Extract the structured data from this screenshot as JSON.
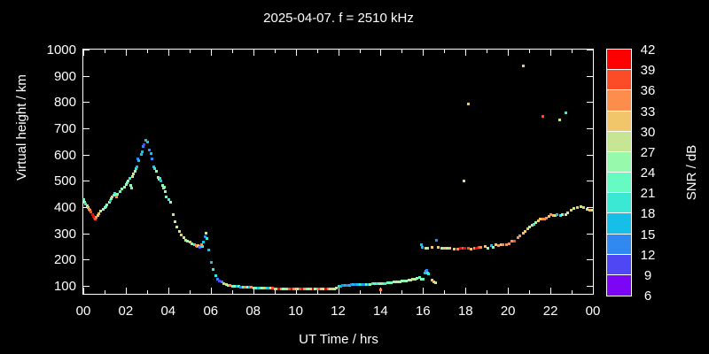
{
  "title": "2025-04-07. f = 2510 kHz",
  "axes": {
    "x_label": "UT Time / hrs",
    "y_label": "Virtual height / km",
    "x_tick_labels": [
      "00",
      "02",
      "04",
      "06",
      "08",
      "10",
      "12",
      "14",
      "16",
      "18",
      "20",
      "22",
      "00"
    ],
    "x_tick_hours": [
      0,
      2,
      4,
      6,
      8,
      10,
      12,
      14,
      16,
      18,
      20,
      22,
      24
    ],
    "y_tick_labels": [
      "1000",
      "900",
      "800",
      "700",
      "600",
      "500",
      "400",
      "300",
      "200",
      "100"
    ],
    "y_tick_values": [
      1000,
      900,
      800,
      700,
      600,
      500,
      400,
      300,
      200,
      100
    ]
  },
  "colorbar": {
    "label": "SNR / dB",
    "tick_labels": [
      "42",
      "39",
      "36",
      "33",
      "30",
      "27",
      "24",
      "21",
      "18",
      "15",
      "12",
      "9",
      "6"
    ],
    "tick_values": [
      42,
      39,
      36,
      33,
      30,
      27,
      24,
      21,
      18,
      15,
      12,
      9,
      6
    ],
    "colors_top_to_bottom": [
      "#ff0000",
      "#fb4b27",
      "#fc8d4c",
      "#f1c56a",
      "#c6e693",
      "#96f9ab",
      "#66fbc2",
      "#3ae8d3",
      "#15bfe8",
      "#2f89f1",
      "#4f46f4",
      "#7d05f5"
    ]
  },
  "chart_data": {
    "type": "scatter",
    "title": "2025-04-07. f = 2510 kHz",
    "xlabel": "UT Time / hrs",
    "ylabel": "Virtual height / km",
    "zlabel": "SNR / dB",
    "xlim": [
      0,
      24
    ],
    "ylim": [
      70,
      1000
    ],
    "snr_range_db": [
      6,
      42
    ],
    "snr_step_db": 3,
    "grid": false,
    "legend_position": "colorbar-right",
    "points_t_h_snr": [
      [
        0.0,
        430,
        22
      ],
      [
        0.05,
        420,
        25
      ],
      [
        0.1,
        415,
        19
      ],
      [
        0.15,
        408,
        25
      ],
      [
        0.2,
        400,
        31
      ],
      [
        0.25,
        395,
        34
      ],
      [
        0.3,
        390,
        34
      ],
      [
        0.35,
        382,
        37
      ],
      [
        0.4,
        375,
        40
      ],
      [
        0.45,
        368,
        40
      ],
      [
        0.5,
        360,
        40
      ],
      [
        0.55,
        355,
        37
      ],
      [
        0.6,
        362,
        34
      ],
      [
        0.65,
        370,
        31
      ],
      [
        0.7,
        378,
        31
      ],
      [
        0.8,
        388,
        28
      ],
      [
        0.9,
        395,
        25
      ],
      [
        1.0,
        400,
        25
      ],
      [
        1.05,
        405,
        22
      ],
      [
        1.1,
        412,
        25
      ],
      [
        1.2,
        420,
        25
      ],
      [
        1.25,
        428,
        16
      ],
      [
        1.3,
        435,
        25
      ],
      [
        1.35,
        442,
        31
      ],
      [
        1.4,
        448,
        22
      ],
      [
        1.45,
        455,
        19
      ],
      [
        1.5,
        448,
        25
      ],
      [
        1.55,
        440,
        34
      ],
      [
        1.6,
        452,
        25
      ],
      [
        1.7,
        462,
        22
      ],
      [
        1.8,
        470,
        25
      ],
      [
        1.9,
        478,
        25
      ],
      [
        2.0,
        488,
        25
      ],
      [
        2.05,
        495,
        22
      ],
      [
        2.1,
        503,
        25
      ],
      [
        2.15,
        510,
        19
      ],
      [
        2.2,
        483,
        25
      ],
      [
        2.25,
        473,
        22
      ],
      [
        2.3,
        518,
        28
      ],
      [
        2.35,
        527,
        28
      ],
      [
        2.4,
        540,
        25
      ],
      [
        2.45,
        550,
        19
      ],
      [
        2.5,
        554,
        16
      ],
      [
        2.55,
        587,
        13
      ],
      [
        2.6,
        580,
        16
      ],
      [
        2.7,
        604,
        16
      ],
      [
        2.75,
        614,
        16
      ],
      [
        2.8,
        634,
        13
      ],
      [
        2.85,
        641,
        10
      ],
      [
        2.9,
        658,
        16
      ],
      [
        3.0,
        650,
        16
      ],
      [
        3.1,
        620,
        13
      ],
      [
        3.15,
        605,
        16
      ],
      [
        3.2,
        587,
        13
      ],
      [
        3.3,
        554,
        16
      ],
      [
        3.35,
        550,
        19
      ],
      [
        3.4,
        540,
        25
      ],
      [
        3.5,
        514,
        28
      ],
      [
        3.55,
        507,
        25
      ],
      [
        3.6,
        510,
        19
      ],
      [
        3.65,
        503,
        16
      ],
      [
        3.7,
        483,
        25
      ],
      [
        3.75,
        473,
        22
      ],
      [
        3.8,
        477,
        25
      ],
      [
        3.85,
        460,
        25
      ],
      [
        3.9,
        440,
        22
      ],
      [
        4.0,
        430,
        19
      ],
      [
        4.1,
        420,
        25
      ],
      [
        4.2,
        372,
        28
      ],
      [
        4.3,
        346,
        28
      ],
      [
        4.4,
        326,
        28
      ],
      [
        4.5,
        309,
        28
      ],
      [
        4.6,
        296,
        31
      ],
      [
        4.7,
        285,
        28
      ],
      [
        4.8,
        277,
        28
      ],
      [
        4.9,
        272,
        25
      ],
      [
        5.0,
        268,
        31
      ],
      [
        5.1,
        262,
        25
      ],
      [
        5.2,
        258,
        19
      ],
      [
        5.3,
        255,
        34
      ],
      [
        5.35,
        252,
        16
      ],
      [
        5.4,
        255,
        31
      ],
      [
        5.45,
        250,
        10
      ],
      [
        5.5,
        253,
        16
      ],
      [
        5.55,
        258,
        34
      ],
      [
        5.6,
        252,
        19
      ],
      [
        5.65,
        270,
        16
      ],
      [
        5.7,
        290,
        13
      ],
      [
        5.75,
        303,
        28
      ],
      [
        5.8,
        282,
        19
      ],
      [
        5.9,
        240,
        16
      ],
      [
        6.0,
        190,
        16
      ],
      [
        6.1,
        165,
        19
      ],
      [
        6.2,
        140,
        19
      ],
      [
        6.3,
        128,
        13
      ],
      [
        6.4,
        122,
        10
      ],
      [
        6.5,
        118,
        13
      ],
      [
        6.6,
        112,
        31
      ],
      [
        6.7,
        108,
        28
      ],
      [
        6.8,
        105,
        25
      ],
      [
        6.9,
        103,
        34
      ],
      [
        7.0,
        102,
        22
      ],
      [
        7.1,
        100,
        25
      ],
      [
        7.2,
        100,
        16
      ],
      [
        7.3,
        99,
        22
      ],
      [
        7.4,
        98,
        13
      ],
      [
        7.5,
        98,
        22
      ],
      [
        7.6,
        97,
        34
      ],
      [
        7.7,
        97,
        25
      ],
      [
        7.8,
        96,
        16
      ],
      [
        7.9,
        96,
        34
      ],
      [
        8.0,
        95,
        25
      ],
      [
        8.1,
        95,
        22
      ],
      [
        8.2,
        95,
        16
      ],
      [
        8.3,
        94,
        19
      ],
      [
        8.4,
        94,
        25
      ],
      [
        8.5,
        94,
        31
      ],
      [
        8.6,
        93,
        19
      ],
      [
        8.7,
        93,
        16
      ],
      [
        8.8,
        93,
        28
      ],
      [
        8.9,
        93,
        37
      ],
      [
        9.0,
        92,
        28
      ],
      [
        9.1,
        92,
        31
      ],
      [
        9.2,
        92,
        40
      ],
      [
        9.3,
        92,
        34
      ],
      [
        9.4,
        92,
        25
      ],
      [
        9.5,
        92,
        22
      ],
      [
        9.6,
        92,
        31
      ],
      [
        9.7,
        91,
        37
      ],
      [
        9.8,
        91,
        40
      ],
      [
        9.9,
        91,
        34
      ],
      [
        10.0,
        91,
        31
      ],
      [
        10.1,
        91,
        25
      ],
      [
        10.2,
        91,
        37
      ],
      [
        10.3,
        91,
        40
      ],
      [
        10.4,
        91,
        34
      ],
      [
        10.5,
        91,
        22
      ],
      [
        10.6,
        91,
        28
      ],
      [
        10.7,
        91,
        31
      ],
      [
        10.8,
        91,
        40
      ],
      [
        10.9,
        91,
        25
      ],
      [
        11.0,
        91,
        34
      ],
      [
        11.1,
        91,
        37
      ],
      [
        11.2,
        91,
        31
      ],
      [
        11.3,
        91,
        28
      ],
      [
        11.4,
        91,
        40
      ],
      [
        11.5,
        91,
        34
      ],
      [
        11.6,
        92,
        28
      ],
      [
        11.7,
        92,
        31
      ],
      [
        11.8,
        92,
        25
      ],
      [
        11.9,
        93,
        28
      ],
      [
        12.0,
        100,
        19
      ],
      [
        12.1,
        102,
        16
      ],
      [
        12.2,
        103,
        13
      ],
      [
        12.3,
        104,
        16
      ],
      [
        12.4,
        105,
        13
      ],
      [
        12.5,
        105,
        16
      ],
      [
        12.6,
        106,
        13
      ],
      [
        12.7,
        106,
        16
      ],
      [
        12.8,
        106,
        13
      ],
      [
        12.9,
        107,
        16
      ],
      [
        13.0,
        107,
        19
      ],
      [
        13.1,
        107,
        16
      ],
      [
        13.2,
        107,
        13
      ],
      [
        13.3,
        108,
        22
      ],
      [
        13.4,
        108,
        16
      ],
      [
        13.5,
        108,
        25
      ],
      [
        13.6,
        109,
        19
      ],
      [
        13.7,
        109,
        22
      ],
      [
        13.8,
        110,
        19
      ],
      [
        13.9,
        110,
        22
      ],
      [
        14.0,
        110,
        25
      ],
      [
        14.0,
        88,
        34
      ],
      [
        14.1,
        111,
        22
      ],
      [
        14.2,
        112,
        19
      ],
      [
        14.3,
        113,
        22
      ],
      [
        14.4,
        114,
        25
      ],
      [
        14.5,
        115,
        22
      ],
      [
        14.6,
        116,
        25
      ],
      [
        14.7,
        117,
        28
      ],
      [
        14.8,
        118,
        25
      ],
      [
        14.9,
        119,
        28
      ],
      [
        15.0,
        120,
        25
      ],
      [
        15.1,
        121,
        22
      ],
      [
        15.2,
        122,
        25
      ],
      [
        15.3,
        123,
        28
      ],
      [
        15.4,
        124,
        25
      ],
      [
        15.5,
        126,
        28
      ],
      [
        15.6,
        128,
        25
      ],
      [
        15.7,
        130,
        25
      ],
      [
        15.8,
        133,
        22
      ],
      [
        15.9,
        128,
        25
      ],
      [
        16.0,
        126,
        22
      ],
      [
        16.05,
        150,
        16
      ],
      [
        16.1,
        157,
        16
      ],
      [
        16.15,
        160,
        13
      ],
      [
        16.2,
        152,
        19
      ],
      [
        16.25,
        147,
        19
      ],
      [
        16.4,
        124,
        31
      ],
      [
        16.5,
        118,
        31
      ],
      [
        16.55,
        115,
        28
      ],
      [
        15.88,
        258,
        16
      ],
      [
        15.95,
        250,
        16
      ],
      [
        16.1,
        244,
        25
      ],
      [
        16.2,
        247,
        28
      ],
      [
        16.4,
        250,
        31
      ],
      [
        16.6,
        277,
        13
      ],
      [
        16.7,
        248,
        31
      ],
      [
        16.85,
        244,
        25
      ],
      [
        17.0,
        244,
        31
      ],
      [
        17.1,
        247,
        25
      ],
      [
        17.25,
        244,
        31
      ],
      [
        17.45,
        241,
        31
      ],
      [
        17.6,
        243,
        34
      ],
      [
        17.75,
        247,
        40
      ],
      [
        17.85,
        245,
        37
      ],
      [
        17.95,
        247,
        40
      ],
      [
        18.1,
        244,
        37
      ],
      [
        18.25,
        243,
        31
      ],
      [
        18.4,
        244,
        34
      ],
      [
        18.5,
        247,
        40
      ],
      [
        18.6,
        248,
        37
      ],
      [
        18.7,
        250,
        34
      ],
      [
        18.9,
        253,
        31
      ],
      [
        19.05,
        245,
        25
      ],
      [
        19.2,
        256,
        16
      ],
      [
        19.3,
        250,
        25
      ],
      [
        19.4,
        259,
        31
      ],
      [
        19.55,
        257,
        34
      ],
      [
        19.65,
        258,
        31
      ],
      [
        19.75,
        260,
        34
      ],
      [
        19.9,
        258,
        34
      ],
      [
        20.05,
        263,
        34
      ],
      [
        20.15,
        271,
        34
      ],
      [
        20.3,
        274,
        37
      ],
      [
        20.45,
        286,
        34
      ],
      [
        20.55,
        292,
        34
      ],
      [
        20.7,
        302,
        31
      ],
      [
        20.8,
        310,
        31
      ],
      [
        20.9,
        318,
        31
      ],
      [
        21.0,
        326,
        25
      ],
      [
        21.1,
        332,
        28
      ],
      [
        21.2,
        338,
        19
      ],
      [
        21.3,
        342,
        25
      ],
      [
        21.4,
        351,
        31
      ],
      [
        21.5,
        355,
        31
      ],
      [
        21.6,
        357,
        34
      ],
      [
        21.7,
        358,
        34
      ],
      [
        21.8,
        361,
        34
      ],
      [
        21.9,
        368,
        31
      ],
      [
        22.0,
        372,
        34
      ],
      [
        22.1,
        371,
        31
      ],
      [
        22.2,
        370,
        28
      ],
      [
        22.3,
        372,
        16
      ],
      [
        22.45,
        370,
        19
      ],
      [
        22.55,
        372,
        25
      ],
      [
        22.7,
        375,
        28
      ],
      [
        22.8,
        381,
        28
      ],
      [
        22.95,
        390,
        31
      ],
      [
        23.1,
        396,
        28
      ],
      [
        23.25,
        402,
        31
      ],
      [
        23.4,
        403,
        28
      ],
      [
        23.55,
        400,
        31
      ],
      [
        23.7,
        394,
        28
      ],
      [
        23.85,
        391,
        31
      ],
      [
        23.95,
        390,
        28
      ],
      [
        17.9,
        500,
        28
      ],
      [
        18.1,
        795,
        31
      ],
      [
        20.7,
        940,
        31
      ],
      [
        21.6,
        748,
        37
      ],
      [
        22.4,
        733,
        28
      ],
      [
        22.7,
        760,
        19
      ]
    ]
  }
}
